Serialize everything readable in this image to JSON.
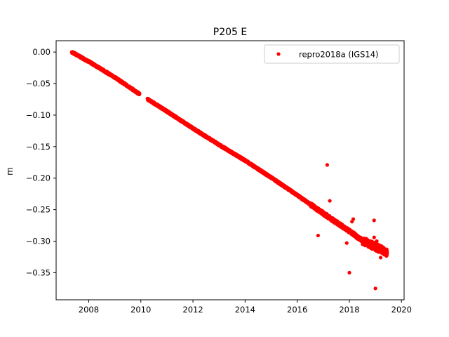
{
  "chart_data": {
    "type": "scatter",
    "title": "P205 E",
    "xlabel": "",
    "ylabel": "m",
    "xlim": [
      2006.75,
      2020.1
    ],
    "ylim": [
      -0.393,
      0.018
    ],
    "xticks": [
      2008,
      2010,
      2012,
      2014,
      2016,
      2018,
      2020
    ],
    "xtick_labels": [
      "2008",
      "2010",
      "2012",
      "2014",
      "2016",
      "2018",
      "2020"
    ],
    "yticks": [
      0.0,
      -0.05,
      -0.1,
      -0.15,
      -0.2,
      -0.25,
      -0.3,
      -0.35
    ],
    "ytick_labels": [
      "0.00",
      "−0.05",
      "−0.10",
      "−0.15",
      "−0.20",
      "−0.25",
      "−0.30",
      "−0.35"
    ],
    "grid": false,
    "legend": {
      "position": "top-right",
      "entries": [
        "repro2018a (IGS14)"
      ]
    },
    "series": [
      {
        "name": "repro2018a (IGS14)",
        "color": "#ff0000",
        "marker": "circle",
        "trend": {
          "x": [
            2007.35,
            2008.0,
            2009.0,
            2010.0,
            2011.0,
            2012.0,
            2013.0,
            2014.0,
            2015.0,
            2016.0,
            2017.0,
            2018.0,
            2018.5,
            2019.0,
            2019.45
          ],
          "y": [
            0.0,
            -0.015,
            -0.04,
            -0.068,
            -0.094,
            -0.121,
            -0.147,
            -0.172,
            -0.199,
            -0.227,
            -0.256,
            -0.284,
            -0.299,
            -0.309,
            -0.318
          ]
        },
        "gap": [
          2009.95,
          2010.25
        ],
        "sampling_interval_years": 0.004,
        "outliers": {
          "x": [
            2016.8,
            2017.15,
            2017.25,
            2017.9,
            2018.0,
            2018.1,
            2018.15,
            2018.95,
            2018.95,
            2019.0,
            2018.85,
            2019.05,
            2019.2
          ],
          "y": [
            -0.291,
            -0.179,
            -0.236,
            -0.303,
            -0.35,
            -0.269,
            -0.265,
            -0.267,
            -0.294,
            -0.375,
            -0.302,
            -0.3,
            -0.326
          ]
        }
      }
    ]
  }
}
